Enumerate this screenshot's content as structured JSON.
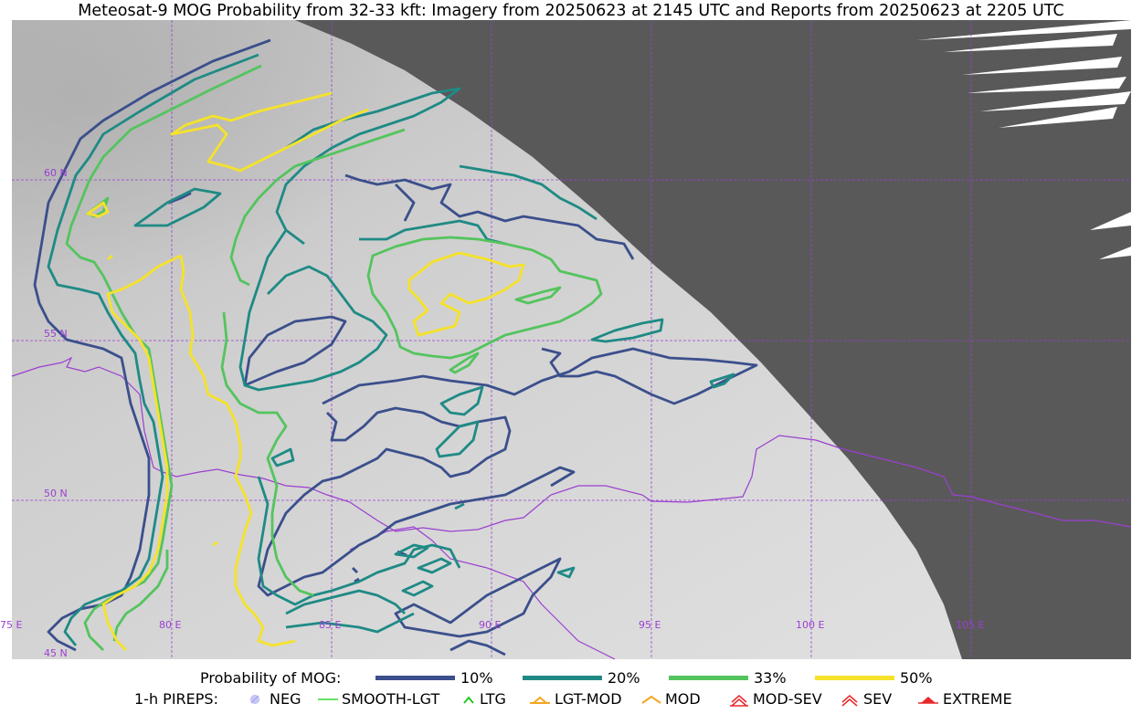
{
  "title": "Meteosat-9 MOG Probability from 32-33 kft: Imagery from 20250623 at 2145 UTC and Reports from 20250623 at 2205 UTC",
  "map": {
    "lat_labels": [
      "60 N",
      "55 N",
      "50 N",
      "45 N"
    ],
    "lon_labels": [
      "75 E",
      "80 E",
      "85 E",
      "90 E",
      "95 E",
      "100 E",
      "105 E"
    ],
    "colors": {
      "imagery_light": "#d4d4d4",
      "no_data": "#595959",
      "grid": "#9b3fd0",
      "border": "#9b3fd0"
    }
  },
  "legend": {
    "probability_label": "Probability of MOG:",
    "probability_items": [
      {
        "label": "10%",
        "color": "#3b4f8c"
      },
      {
        "label": "20%",
        "color": "#1f8a85"
      },
      {
        "label": "33%",
        "color": "#54c45e"
      },
      {
        "label": "50%",
        "color": "#f5e22a"
      }
    ],
    "pirep_label": "1-h PIREPS:",
    "pirep_items": [
      {
        "label": "NEG",
        "icon": "neg-circle-icon",
        "color": "#b9b9f5"
      },
      {
        "label": "SMOOTH-LGT",
        "icon": "dash-icon",
        "color": "#31d831"
      },
      {
        "label": "LTG",
        "icon": "caret-icon",
        "color": "#22c722"
      },
      {
        "label": "LGT-MOD",
        "icon": "caret-bar-icon",
        "color": "#f5a623"
      },
      {
        "label": "MOD",
        "icon": "caret-icon",
        "color": "#f5a623"
      },
      {
        "label": "MOD-SEV",
        "icon": "double-caret-icon",
        "color": "#e8282b"
      },
      {
        "label": "SEV",
        "icon": "double-caret-icon",
        "color": "#e8282b"
      },
      {
        "label": "EXTREME",
        "icon": "filled-caret-icon",
        "color": "#e8282b"
      }
    ]
  }
}
